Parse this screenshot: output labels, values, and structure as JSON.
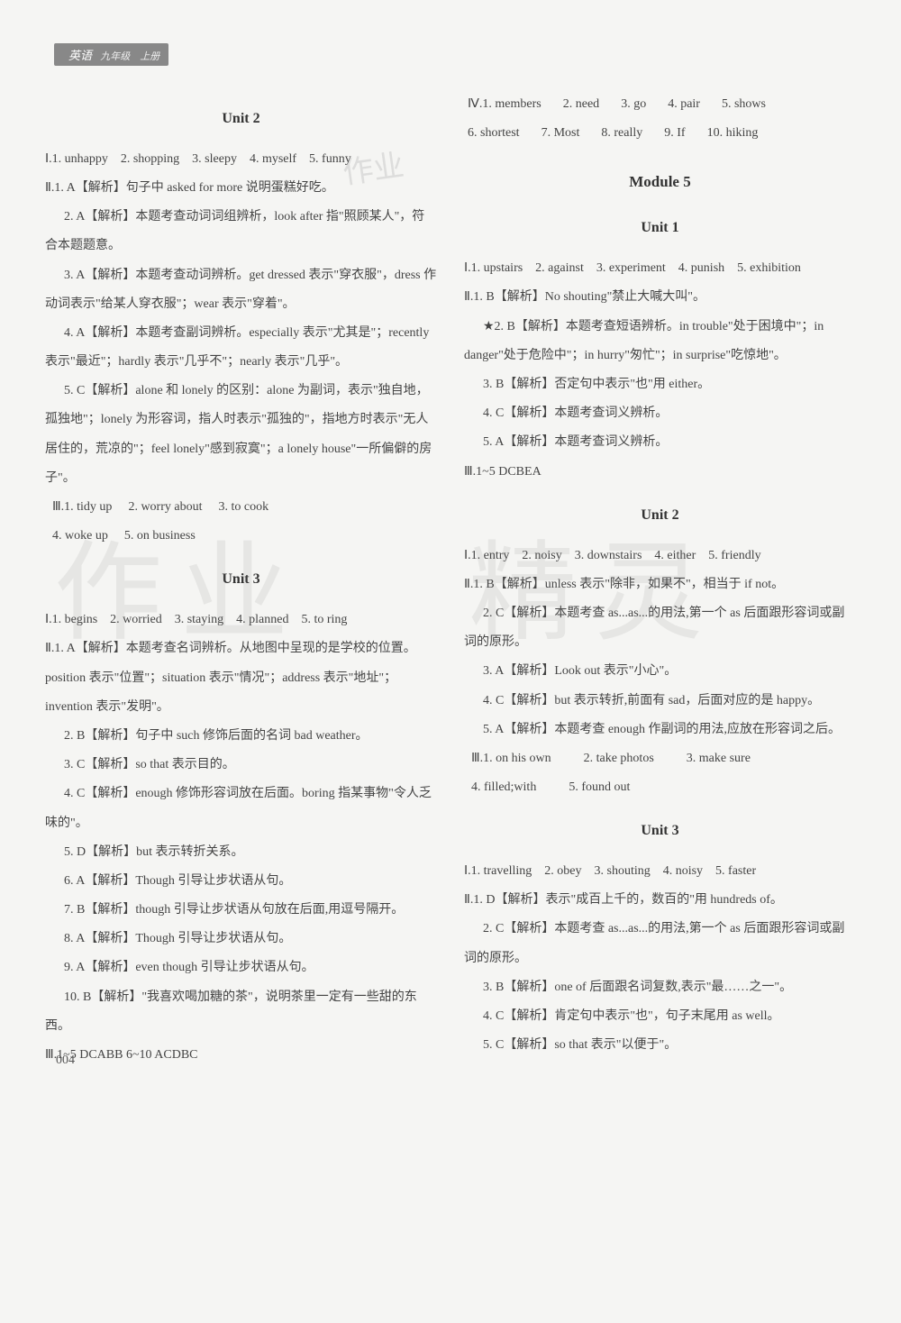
{
  "page_number": "004",
  "header": {
    "subject": "英语",
    "grade": "九年级　上册"
  },
  "watermarks": {
    "w1": "作业",
    "w2": "作业",
    "w3": "精灵"
  },
  "left": {
    "unit2": {
      "title": "Unit 2",
      "I": "Ⅰ.1. unhappy　2. shopping　3. sleepy　4. myself　5. funny",
      "II_1": "Ⅱ.1. A【解析】句子中 asked for more 说明蛋糕好吃。",
      "II_2": "2. A【解析】本题考查动词词组辨析，look after 指\"照顾某人\"，符合本题题意。",
      "II_3": "3. A【解析】本题考查动词辨析。get dressed 表示\"穿衣服\"，dress 作动词表示\"给某人穿衣服\"；wear 表示\"穿着\"。",
      "II_4": "4. A【解析】本题考查副词辨析。especially 表示\"尤其是\"；recently 表示\"最近\"；hardly 表示\"几乎不\"；nearly 表示\"几乎\"。",
      "II_5": "5. C【解析】alone 和 lonely 的区别：alone 为副词，表示\"独自地，孤独地\"；lonely 为形容词，指人时表示\"孤独的\"，指地方时表示\"无人居住的，荒凉的\"；feel lonely\"感到寂寞\"；a lonely house\"一所偏僻的房子\"。",
      "III": [
        "Ⅲ.1. tidy up",
        "2. worry about",
        "3. to cook",
        "4. woke up",
        "5. on business"
      ]
    },
    "unit3": {
      "title": "Unit 3",
      "I": "Ⅰ.1. begins　2. worried　3. staying　4. planned　5. to ring",
      "II_1": "Ⅱ.1. A【解析】本题考查名词辨析。从地图中呈现的是学校的位置。position 表示\"位置\"；situation 表示\"情况\"；address 表示\"地址\"；invention 表示\"发明\"。",
      "II_2": "2. B【解析】句子中 such 修饰后面的名词 bad weather。",
      "II_3": "3. C【解析】so that 表示目的。",
      "II_4": "4. C【解析】enough 修饰形容词放在后面。boring 指某事物\"令人乏味的\"。",
      "II_5": "5. D【解析】but 表示转折关系。",
      "II_6": "6. A【解析】Though 引导让步状语从句。",
      "II_7": "7. B【解析】though 引导让步状语从句放在后面,用逗号隔开。",
      "II_8": "8. A【解析】Though 引导让步状语从句。",
      "II_9": "9. A【解析】even though 引导让步状语从句。",
      "II_10": "10. B【解析】\"我喜欢喝加糖的茶\"，说明茶里一定有一些甜的东西。",
      "III": "Ⅲ.1~5 DCABB 6~10 ACDBC"
    }
  },
  "right": {
    "IV": [
      "Ⅳ.1. members",
      "2. need",
      "3. go",
      "4. pair",
      "5. shows",
      "6. shortest",
      "7. Most",
      "8. really",
      "9. If",
      "10. hiking"
    ],
    "module5": "Module 5",
    "unit1": {
      "title": "Unit 1",
      "I": "Ⅰ.1. upstairs　2. against　3. experiment　4. punish　5. exhibition",
      "II_1": "Ⅱ.1. B【解析】No shouting\"禁止大喊大叫\"。",
      "II_2": "★2. B【解析】本题考查短语辨析。in trouble\"处于困境中\"；in danger\"处于危险中\"；in hurry\"匆忙\"；in surprise\"吃惊地\"。",
      "II_3": "3. B【解析】否定句中表示\"也\"用 either。",
      "II_4": "4. C【解析】本题考查词义辨析。",
      "II_5": "5. A【解析】本题考查词义辨析。",
      "III": "Ⅲ.1~5 DCBEA"
    },
    "unit2": {
      "title": "Unit 2",
      "I": "Ⅰ.1. entry　2. noisy　3. downstairs　4. either　5. friendly",
      "II_1": "Ⅱ.1. B【解析】unless 表示\"除非，如果不\"，相当于 if not。",
      "II_2": "2. C【解析】本题考查 as...as...的用法,第一个 as 后面跟形容词或副词的原形。",
      "II_3": "3. A【解析】Look out 表示\"小心\"。",
      "II_4": "4. C【解析】but 表示转折,前面有 sad，后面对应的是 happy。",
      "II_5": "5. A【解析】本题考查 enough 作副词的用法,应放在形容词之后。",
      "III": [
        "Ⅲ.1. on his own",
        "2. take photos",
        "3. make sure",
        "4. filled;with",
        "5. found out"
      ]
    },
    "unit3": {
      "title": "Unit 3",
      "I": "Ⅰ.1. travelling　2. obey　3. shouting　4. noisy　5. faster",
      "II_1": "Ⅱ.1. D【解析】表示\"成百上千的，数百的\"用 hundreds of。",
      "II_2": "2. C【解析】本题考查 as...as...的用法,第一个 as 后面跟形容词或副词的原形。",
      "II_3": "3. B【解析】one of 后面跟名词复数,表示\"最……之一\"。",
      "II_4": "4. C【解析】肯定句中表示\"也\"，句子末尾用 as well。",
      "II_5": "5. C【解析】so that 表示\"以便于\"。"
    }
  }
}
